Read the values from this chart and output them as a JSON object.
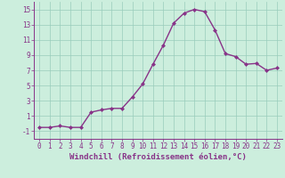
{
  "x": [
    0,
    1,
    2,
    3,
    4,
    5,
    6,
    7,
    8,
    9,
    10,
    11,
    12,
    13,
    14,
    15,
    16,
    17,
    18,
    19,
    20,
    21,
    22,
    23
  ],
  "y": [
    -0.5,
    -0.5,
    -0.3,
    -0.5,
    -0.5,
    1.5,
    1.8,
    2.0,
    2.0,
    3.5,
    5.2,
    7.8,
    10.3,
    13.2,
    14.5,
    15.0,
    14.7,
    12.3,
    9.2,
    8.8,
    7.8,
    7.9,
    7.0,
    7.3
  ],
  "line_color": "#883388",
  "marker": "D",
  "marker_size": 2.0,
  "bg_color": "#cceedd",
  "grid_color": "#99ccbb",
  "xlabel": "Windchill (Refroidissement éolien,°C)",
  "xlabel_fontsize": 6.5,
  "ylabel_ticks": [
    -1,
    1,
    3,
    5,
    7,
    9,
    11,
    13,
    15
  ],
  "xtick_labels": [
    "0",
    "1",
    "2",
    "3",
    "4",
    "5",
    "6",
    "7",
    "8",
    "9",
    "10",
    "11",
    "12",
    "13",
    "14",
    "15",
    "16",
    "17",
    "18",
    "19",
    "20",
    "21",
    "22",
    "23"
  ],
  "xlim": [
    -0.5,
    23.5
  ],
  "ylim": [
    -2.0,
    16.0
  ],
  "tick_fontsize": 5.5,
  "line_width": 1.0
}
